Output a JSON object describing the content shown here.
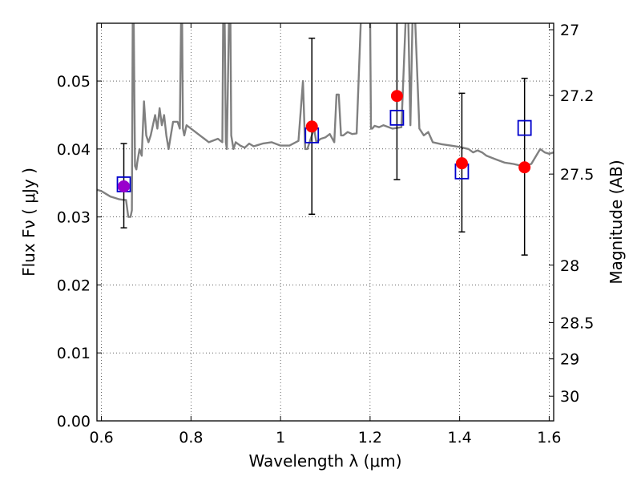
{
  "chart_data": {
    "type": "scatter",
    "xlabel": "Wavelength  λ (μm)",
    "ylabel": "Flux  Fν  ( μJy )",
    "y2label": "Magnitude (AB)",
    "xlim": [
      0.59,
      1.61
    ],
    "ylim": [
      0.0,
      0.0585
    ],
    "grid": true,
    "x_ticks": [
      {
        "v": 0.6,
        "label": "0.6"
      },
      {
        "v": 0.8,
        "label": "0.8"
      },
      {
        "v": 1.0,
        "label": "1"
      },
      {
        "v": 1.2,
        "label": "1.2"
      },
      {
        "v": 1.4,
        "label": "1.4"
      },
      {
        "v": 1.6,
        "label": "1.6"
      }
    ],
    "y_ticks": [
      {
        "v": 0.0,
        "label": "0.00"
      },
      {
        "v": 0.01,
        "label": "0.01"
      },
      {
        "v": 0.02,
        "label": "0.02"
      },
      {
        "v": 0.03,
        "label": "0.03"
      },
      {
        "v": 0.04,
        "label": "0.04"
      },
      {
        "v": 0.05,
        "label": "0.05"
      }
    ],
    "y2_ticks": [
      {
        "mag": 27,
        "label": "27"
      },
      {
        "mag": 27.2,
        "label": "27.2"
      },
      {
        "mag": 27.5,
        "label": "27.5"
      },
      {
        "mag": 28,
        "label": "28"
      },
      {
        "mag": 28.5,
        "label": "28.5"
      },
      {
        "mag": 29,
        "label": "29"
      },
      {
        "mag": 30,
        "label": "30"
      }
    ],
    "observed": {
      "color": "#ff0000",
      "points": [
        {
          "x": 0.65,
          "y": 0.0345,
          "yerr_low": 0.0284,
          "yerr_high": 0.0408
        },
        {
          "x": 1.07,
          "y": 0.0433,
          "yerr_low": 0.0304,
          "yerr_high": 0.0563
        },
        {
          "x": 1.26,
          "y": 0.0478,
          "yerr_low": 0.0355,
          "yerr_high": 0.06
        },
        {
          "x": 1.405,
          "y": 0.0379,
          "yerr_low": 0.0278,
          "yerr_high": 0.0482
        },
        {
          "x": 1.545,
          "y": 0.0373,
          "yerr_low": 0.0244,
          "yerr_high": 0.0504
        }
      ]
    },
    "model_points": {
      "color": "#0000cc",
      "points": [
        {
          "x": 0.65,
          "y": 0.0348
        },
        {
          "x": 1.07,
          "y": 0.042
        },
        {
          "x": 1.26,
          "y": 0.0446
        },
        {
          "x": 1.405,
          "y": 0.0367
        },
        {
          "x": 1.545,
          "y": 0.0431
        }
      ]
    },
    "overlap_color": "#9900cc",
    "spectrum": {
      "color": "#808080",
      "x": [
        0.59,
        0.6,
        0.61,
        0.62,
        0.63,
        0.64,
        0.65,
        0.655,
        0.66,
        0.665,
        0.668,
        0.67,
        0.672,
        0.675,
        0.678,
        0.68,
        0.685,
        0.69,
        0.695,
        0.7,
        0.705,
        0.71,
        0.72,
        0.725,
        0.73,
        0.735,
        0.74,
        0.745,
        0.75,
        0.76,
        0.77,
        0.775,
        0.778,
        0.78,
        0.782,
        0.785,
        0.79,
        0.8,
        0.82,
        0.84,
        0.86,
        0.87,
        0.872,
        0.875,
        0.878,
        0.88,
        0.885,
        0.888,
        0.89,
        0.895,
        0.9,
        0.91,
        0.92,
        0.93,
        0.94,
        0.95,
        0.96,
        0.98,
        1.0,
        1.02,
        1.04,
        1.05,
        1.055,
        1.058,
        1.06,
        1.065,
        1.07,
        1.075,
        1.08,
        1.09,
        1.1,
        1.11,
        1.12,
        1.125,
        1.13,
        1.135,
        1.14,
        1.15,
        1.16,
        1.17,
        1.18,
        1.19,
        1.2,
        1.202,
        1.205,
        1.21,
        1.22,
        1.23,
        1.25,
        1.27,
        1.28,
        1.285,
        1.29,
        1.295,
        1.3,
        1.31,
        1.32,
        1.33,
        1.34,
        1.36,
        1.38,
        1.4,
        1.42,
        1.43,
        1.44,
        1.45,
        1.46,
        1.48,
        1.5,
        1.52,
        1.54,
        1.56,
        1.58,
        1.59,
        1.6,
        1.61
      ],
      "y": [
        0.034,
        0.0338,
        0.0334,
        0.033,
        0.0328,
        0.0326,
        0.0325,
        0.0325,
        0.03,
        0.03,
        0.031,
        0.06,
        0.06,
        0.0375,
        0.037,
        0.038,
        0.04,
        0.039,
        0.047,
        0.042,
        0.041,
        0.042,
        0.045,
        0.043,
        0.046,
        0.0435,
        0.045,
        0.042,
        0.04,
        0.044,
        0.044,
        0.043,
        0.06,
        0.06,
        0.043,
        0.042,
        0.0435,
        0.043,
        0.042,
        0.041,
        0.0415,
        0.041,
        0.06,
        0.06,
        0.041,
        0.04,
        0.06,
        0.06,
        0.042,
        0.04,
        0.041,
        0.0405,
        0.0402,
        0.0408,
        0.0404,
        0.0406,
        0.0408,
        0.041,
        0.0405,
        0.0405,
        0.0412,
        0.05,
        0.04,
        0.04,
        0.04,
        0.041,
        0.042,
        0.043,
        0.041,
        0.0415,
        0.0417,
        0.0422,
        0.041,
        0.048,
        0.048,
        0.042,
        0.042,
        0.0425,
        0.0422,
        0.0423,
        0.06,
        0.06,
        0.06,
        0.043,
        0.043,
        0.0434,
        0.0432,
        0.0435,
        0.043,
        0.0432,
        0.06,
        0.06,
        0.0435,
        0.06,
        0.06,
        0.043,
        0.042,
        0.0425,
        0.041,
        0.0407,
        0.0405,
        0.0403,
        0.04,
        0.0395,
        0.0398,
        0.0395,
        0.039,
        0.0385,
        0.038,
        0.0378,
        0.0375,
        0.0378,
        0.04,
        0.0395,
        0.0393,
        0.0395
      ]
    }
  }
}
